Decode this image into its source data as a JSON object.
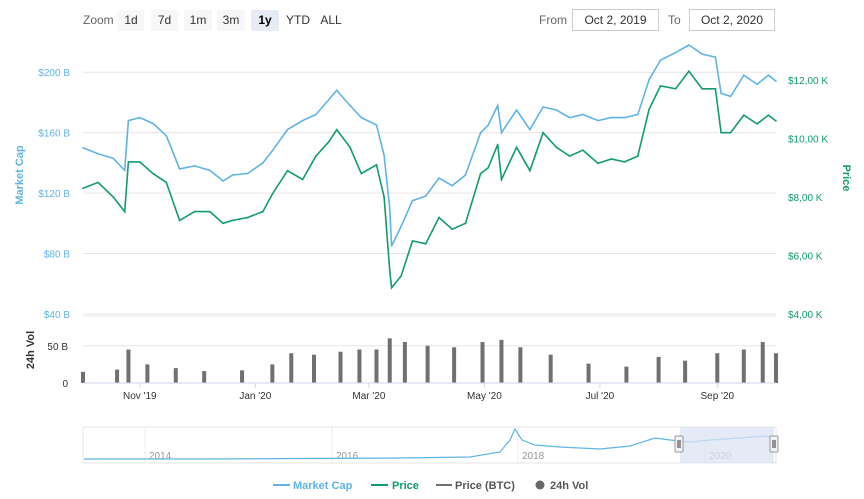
{
  "toolbar": {
    "zoom_label": "Zoom",
    "zoom_buttons": [
      "1d",
      "7d",
      "1m",
      "3m",
      "1y",
      "YTD",
      "ALL"
    ],
    "active_zoom": "1y",
    "from_label": "From",
    "from_value": "Oct 2, 2019",
    "to_label": "To",
    "to_value": "Oct 2, 2020"
  },
  "colors": {
    "market_cap": "#5fb4e4",
    "price": "#129b6b",
    "volume": "#707070",
    "navigator_fill": "#dbe4f4"
  },
  "chart_data": [
    {
      "type": "line",
      "title": "",
      "x_axis": {
        "tick_labels": [
          "Nov '19",
          "Jan '20",
          "Mar '20",
          "May '20",
          "Jul '20",
          "Sep '20"
        ],
        "tick_dates": [
          "2019-11-01",
          "2020-01-01",
          "2020-03-01",
          "2020-05-01",
          "2020-07-01",
          "2020-09-01"
        ],
        "range": [
          "2019-10-02",
          "2020-10-02"
        ]
      },
      "y_left": {
        "label": "Market Cap",
        "ticks": [
          40,
          80,
          120,
          160,
          200
        ],
        "tick_labels": [
          "$40 B",
          "$80 B",
          "$120 B",
          "$160 B",
          "$200 B"
        ],
        "unit": "B",
        "range": [
          40,
          220
        ]
      },
      "y_right": {
        "label": "Price",
        "ticks": [
          4000,
          6000,
          8000,
          10000,
          12000
        ],
        "tick_labels": [
          "$4,00 K",
          "$6,00 K",
          "$8,00 K",
          "$10,00 K",
          "$12,00 K"
        ],
        "range": [
          4000,
          13300
        ]
      },
      "series": [
        {
          "name": "Market Cap",
          "axis": "left",
          "points": [
            [
              "2019-10-02",
              150
            ],
            [
              "2019-10-10",
              146
            ],
            [
              "2019-10-18",
              143
            ],
            [
              "2019-10-24",
              135
            ],
            [
              "2019-10-26",
              168
            ],
            [
              "2019-11-01",
              170
            ],
            [
              "2019-11-08",
              166
            ],
            [
              "2019-11-15",
              158
            ],
            [
              "2019-11-22",
              136
            ],
            [
              "2019-11-30",
              138
            ],
            [
              "2019-12-08",
              135
            ],
            [
              "2019-12-15",
              128
            ],
            [
              "2019-12-20",
              132
            ],
            [
              "2019-12-28",
              133
            ],
            [
              "2020-01-05",
              140
            ],
            [
              "2020-01-10",
              148
            ],
            [
              "2020-01-18",
              162
            ],
            [
              "2020-01-26",
              168
            ],
            [
              "2020-02-02",
              172
            ],
            [
              "2020-02-09",
              182
            ],
            [
              "2020-02-13",
              188
            ],
            [
              "2020-02-20",
              178
            ],
            [
              "2020-02-26",
              170
            ],
            [
              "2020-03-05",
              165
            ],
            [
              "2020-03-09",
              145
            ],
            [
              "2020-03-12",
              110
            ],
            [
              "2020-03-13",
              85
            ],
            [
              "2020-03-18",
              98
            ],
            [
              "2020-03-24",
              115
            ],
            [
              "2020-03-31",
              118
            ],
            [
              "2020-04-07",
              130
            ],
            [
              "2020-04-14",
              125
            ],
            [
              "2020-04-21",
              132
            ],
            [
              "2020-04-29",
              160
            ],
            [
              "2020-05-03",
              165
            ],
            [
              "2020-05-08",
              178
            ],
            [
              "2020-05-10",
              160
            ],
            [
              "2020-05-18",
              175
            ],
            [
              "2020-05-25",
              162
            ],
            [
              "2020-06-01",
              177
            ],
            [
              "2020-06-08",
              175
            ],
            [
              "2020-06-15",
              170
            ],
            [
              "2020-06-22",
              172
            ],
            [
              "2020-06-30",
              168
            ],
            [
              "2020-07-07",
              170
            ],
            [
              "2020-07-14",
              170
            ],
            [
              "2020-07-21",
              172
            ],
            [
              "2020-07-27",
              195
            ],
            [
              "2020-08-02",
              208
            ],
            [
              "2020-08-10",
              213
            ],
            [
              "2020-08-17",
              218
            ],
            [
              "2020-08-24",
              212
            ],
            [
              "2020-08-31",
              210
            ],
            [
              "2020-09-03",
              186
            ],
            [
              "2020-09-08",
              184
            ],
            [
              "2020-09-15",
              198
            ],
            [
              "2020-09-22",
              192
            ],
            [
              "2020-09-28",
              198
            ],
            [
              "2020-10-02",
              194
            ]
          ]
        },
        {
          "name": "Price",
          "axis": "right",
          "points": [
            [
              "2019-10-02",
              8300
            ],
            [
              "2019-10-10",
              8500
            ],
            [
              "2019-10-18",
              8000
            ],
            [
              "2019-10-24",
              7500
            ],
            [
              "2019-10-26",
              9200
            ],
            [
              "2019-11-01",
              9200
            ],
            [
              "2019-11-08",
              8800
            ],
            [
              "2019-11-15",
              8500
            ],
            [
              "2019-11-22",
              7200
            ],
            [
              "2019-11-30",
              7500
            ],
            [
              "2019-12-08",
              7500
            ],
            [
              "2019-12-15",
              7100
            ],
            [
              "2019-12-20",
              7200
            ],
            [
              "2019-12-28",
              7300
            ],
            [
              "2020-01-05",
              7500
            ],
            [
              "2020-01-10",
              8100
            ],
            [
              "2020-01-18",
              8900
            ],
            [
              "2020-01-26",
              8600
            ],
            [
              "2020-02-02",
              9400
            ],
            [
              "2020-02-09",
              9900
            ],
            [
              "2020-02-13",
              10300
            ],
            [
              "2020-02-20",
              9700
            ],
            [
              "2020-02-26",
              8800
            ],
            [
              "2020-03-05",
              9100
            ],
            [
              "2020-03-09",
              8000
            ],
            [
              "2020-03-12",
              5500
            ],
            [
              "2020-03-13",
              4900
            ],
            [
              "2020-03-18",
              5300
            ],
            [
              "2020-03-24",
              6500
            ],
            [
              "2020-03-31",
              6400
            ],
            [
              "2020-04-07",
              7300
            ],
            [
              "2020-04-14",
              6900
            ],
            [
              "2020-04-21",
              7100
            ],
            [
              "2020-04-29",
              8800
            ],
            [
              "2020-05-03",
              9000
            ],
            [
              "2020-05-08",
              9800
            ],
            [
              "2020-05-10",
              8600
            ],
            [
              "2020-05-18",
              9700
            ],
            [
              "2020-05-25",
              8900
            ],
            [
              "2020-06-01",
              10200
            ],
            [
              "2020-06-08",
              9700
            ],
            [
              "2020-06-15",
              9400
            ],
            [
              "2020-06-22",
              9600
            ],
            [
              "2020-06-30",
              9150
            ],
            [
              "2020-07-07",
              9300
            ],
            [
              "2020-07-14",
              9200
            ],
            [
              "2020-07-21",
              9400
            ],
            [
              "2020-07-27",
              11000
            ],
            [
              "2020-08-02",
              11800
            ],
            [
              "2020-08-10",
              11700
            ],
            [
              "2020-08-17",
              12300
            ],
            [
              "2020-08-24",
              11700
            ],
            [
              "2020-08-31",
              11700
            ],
            [
              "2020-09-03",
              10200
            ],
            [
              "2020-09-08",
              10200
            ],
            [
              "2020-09-15",
              10800
            ],
            [
              "2020-09-22",
              10500
            ],
            [
              "2020-09-28",
              10800
            ],
            [
              "2020-10-02",
              10600
            ]
          ]
        }
      ]
    },
    {
      "type": "bar",
      "title": "",
      "y_axis": {
        "label": "24h Vol",
        "ticks": [
          0,
          50
        ],
        "tick_labels": [
          "0",
          "50 B"
        ],
        "range": [
          0,
          90
        ]
      },
      "series": [
        {
          "name": "24h Vol",
          "unit": "B",
          "points": [
            [
              "2019-10-02",
              15
            ],
            [
              "2019-10-20",
              18
            ],
            [
              "2019-10-26",
              45
            ],
            [
              "2019-11-05",
              25
            ],
            [
              "2019-11-20",
              20
            ],
            [
              "2019-12-05",
              16
            ],
            [
              "2019-12-25",
              17
            ],
            [
              "2020-01-10",
              25
            ],
            [
              "2020-01-20",
              40
            ],
            [
              "2020-02-01",
              38
            ],
            [
              "2020-02-15",
              42
            ],
            [
              "2020-02-25",
              45
            ],
            [
              "2020-03-05",
              45
            ],
            [
              "2020-03-12",
              60
            ],
            [
              "2020-03-20",
              55
            ],
            [
              "2020-04-01",
              50
            ],
            [
              "2020-04-15",
              48
            ],
            [
              "2020-04-30",
              55
            ],
            [
              "2020-05-10",
              58
            ],
            [
              "2020-05-20",
              48
            ],
            [
              "2020-06-05",
              38
            ],
            [
              "2020-06-25",
              26
            ],
            [
              "2020-07-15",
              22
            ],
            [
              "2020-08-01",
              35
            ],
            [
              "2020-08-15",
              30
            ],
            [
              "2020-09-01",
              40
            ],
            [
              "2020-09-15",
              45
            ],
            [
              "2020-09-25",
              55
            ],
            [
              "2020-10-02",
              40
            ]
          ]
        }
      ]
    },
    {
      "type": "area",
      "title": "",
      "x_axis": {
        "tick_labels": [
          "2014",
          "2016",
          "2018",
          "2020"
        ]
      },
      "selected_range": [
        "2019-10-02",
        "2020-10-02"
      ]
    }
  ],
  "legend": {
    "placement": "bottom-center",
    "items": [
      "Market Cap",
      "Price",
      "Price (BTC)",
      "24h Vol"
    ]
  }
}
